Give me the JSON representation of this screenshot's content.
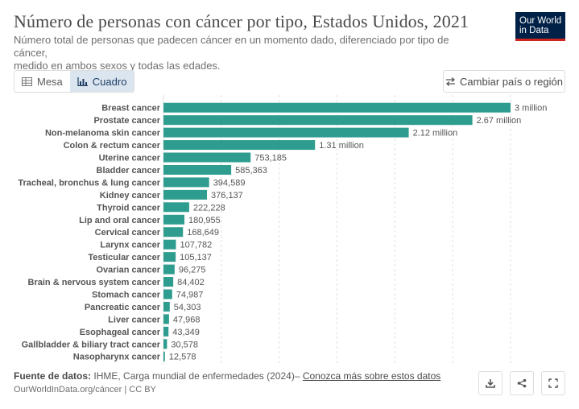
{
  "header": {
    "title": "Número de personas con cáncer por tipo, Estados Unidos, 2021",
    "subtitle_line1": "Número total de personas que padecen cáncer en un momento dado, diferenciado por tipo de cáncer,",
    "subtitle_line2": "medido en ambos sexos y todas las edades.",
    "logo_line1": "Our World",
    "logo_line2": "in Data"
  },
  "controls": {
    "tab_table": "Mesa",
    "tab_chart": "Cuadro",
    "active_tab": "Cuadro",
    "change_region": "Cambiar país o región"
  },
  "footer": {
    "source_label": "Fuente de datos:",
    "source_text": "IHME, Carga mundial de enfermedades (2024)–",
    "source_link": "Conozca más sobre estos datos",
    "url_line": "OurWorldInData.org/cáncer | CC BY"
  },
  "colors": {
    "bar": "#2e9d8f",
    "logo_bg": "#002147",
    "logo_stripe": "#ce261e",
    "active_tab_bg": "#dbe5f0"
  },
  "icons": [
    "table-icon",
    "chart-icon",
    "swap-icon",
    "download-icon",
    "share-icon",
    "fullscreen-icon"
  ],
  "chart_data": {
    "type": "bar",
    "orientation": "horizontal",
    "grid": true,
    "xlim": [
      0,
      3000000
    ],
    "categories": [
      "Breast cancer",
      "Prostate cancer",
      "Non-melanoma skin cancer",
      "Colon & rectum cancer",
      "Uterine cancer",
      "Bladder cancer",
      "Tracheal, bronchus & lung cancer",
      "Kidney cancer",
      "Thyroid cancer",
      "Lip and oral cancer",
      "Cervical cancer",
      "Larynx cancer",
      "Testicular cancer",
      "Ovarian cancer",
      "Brain & nervous system cancer",
      "Stomach cancer",
      "Pancreatic cancer",
      "Liver cancer",
      "Esophageal cancer",
      "Gallbladder & biliary tract cancer",
      "Nasopharynx cancer"
    ],
    "values": [
      3000000,
      2670000,
      2120000,
      1310000,
      753185,
      585363,
      394589,
      376137,
      222228,
      180955,
      168649,
      107782,
      105137,
      96275,
      84402,
      74987,
      54303,
      47968,
      43349,
      30578,
      12578
    ],
    "value_labels": [
      "3 million",
      "2.67 million",
      "2.12 million",
      "1.31 million",
      "753,185",
      "585,363",
      "394,589",
      "376,137",
      "222,228",
      "180,955",
      "168,649",
      "107,782",
      "105,137",
      "96,275",
      "84,402",
      "74,987",
      "54,303",
      "47,968",
      "43,349",
      "30,578",
      "12,578"
    ]
  }
}
